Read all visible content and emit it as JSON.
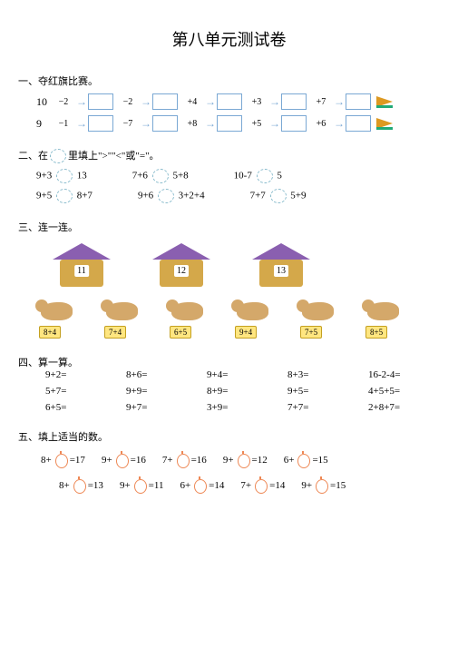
{
  "title": "第八单元测试卷",
  "s1": {
    "h": "一、夺红旗比赛。",
    "chains": [
      {
        "start": "10",
        "ops": [
          "−2",
          "−2",
          "+4",
          "+3",
          "+7"
        ]
      },
      {
        "start": "9",
        "ops": [
          "−1",
          "−7",
          "+8",
          "+5",
          "+6"
        ]
      }
    ]
  },
  "s2": {
    "h": "二、在",
    "h2": "里填上",
    "h3": "或",
    "sym": "\">\"\"<\"",
    "sym2": "\"=\"。",
    "rows": [
      [
        "9+3",
        "13",
        "7+6",
        "5+8",
        "10-7",
        "5"
      ],
      [
        "9+5",
        "8+7",
        "9+6",
        "3+2+4",
        "7+7",
        "5+9"
      ]
    ]
  },
  "s3": {
    "h": "三、连一连。",
    "houses": [
      "11",
      "12",
      "13"
    ],
    "dogs": [
      "8+4",
      "7+4",
      "6+5",
      "9+4",
      "7+5",
      "8+5"
    ]
  },
  "s4": {
    "h": "四、算一算。",
    "items": [
      "9+2=",
      "8+6=",
      "9+4=",
      "8+3=",
      "16-2-4=",
      "5+7=",
      "9+9=",
      "8+9=",
      "9+5=",
      "4+5+5=",
      "6+5=",
      "9+7=",
      "3+9=",
      "7+7=",
      "2+8+7="
    ]
  },
  "s5": {
    "h": "五、填上适当的数。",
    "rows": [
      [
        {
          "p": "8+",
          "r": "=17"
        },
        {
          "p": "9+",
          "r": "=16"
        },
        {
          "p": "7+",
          "r": "=16"
        },
        {
          "p": "9+",
          "r": "=12"
        },
        {
          "p": "6+",
          "r": "=15"
        }
      ],
      [
        {
          "p": "8+",
          "r": "=13"
        },
        {
          "p": "9+",
          "r": "=11"
        },
        {
          "p": "6+",
          "r": "=14"
        },
        {
          "p": "7+",
          "r": "=14"
        },
        {
          "p": "9+",
          "r": "=15"
        }
      ]
    ]
  }
}
